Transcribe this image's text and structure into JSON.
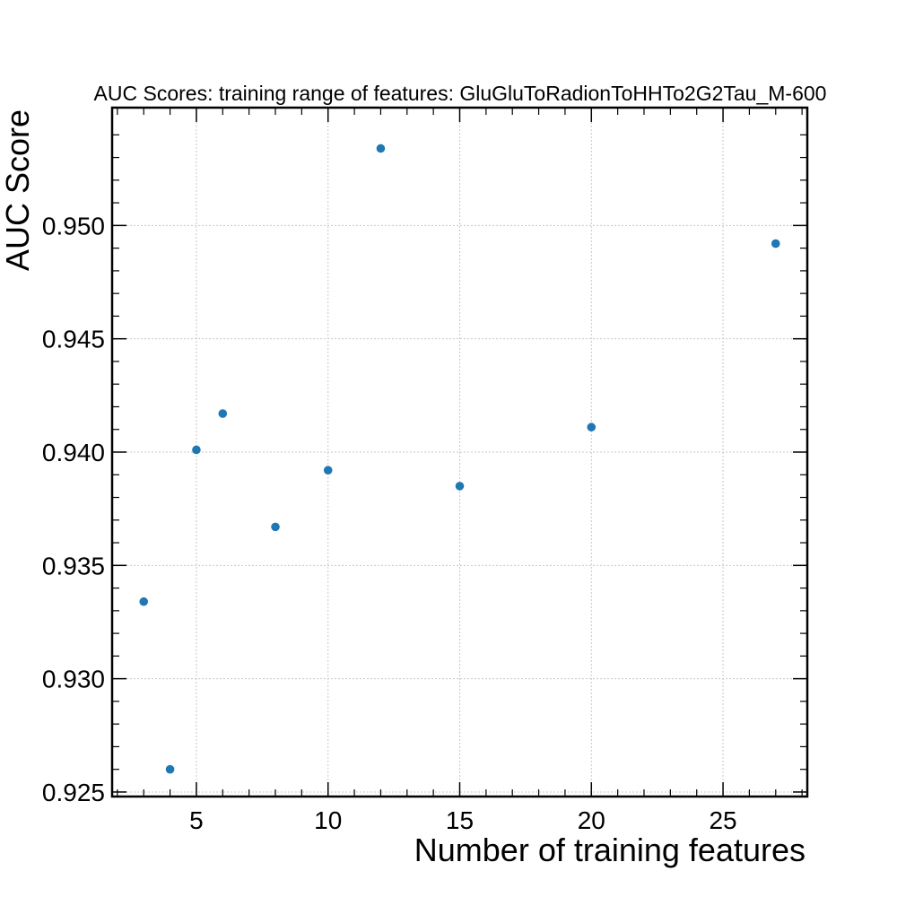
{
  "chart_data": {
    "type": "scatter",
    "title": "AUC Scores: training range of features: GluGluToRadionToHHTo2G2Tau_M-600",
    "xlabel": "Number of training features",
    "ylabel": "AUC Score",
    "xlim": [
      1.8,
      28.2
    ],
    "ylim": [
      0.9248,
      0.9552
    ],
    "grid": true,
    "xticks": [
      5,
      10,
      15,
      20,
      25
    ],
    "xtick_labels": [
      "5",
      "10",
      "15",
      "20",
      "25"
    ],
    "yticks": [
      0.925,
      0.93,
      0.935,
      0.94,
      0.945,
      0.95
    ],
    "ytick_labels": [
      "0.925",
      "0.930",
      "0.935",
      "0.940",
      "0.945",
      "0.950"
    ],
    "marker_color": "#1f77b4",
    "x": [
      3,
      4,
      5,
      6,
      8,
      10,
      12,
      15,
      20,
      27
    ],
    "y": [
      0.9334,
      0.926,
      0.9401,
      0.9417,
      0.9367,
      0.9392,
      0.9534,
      0.9385,
      0.9411,
      0.9492
    ]
  }
}
